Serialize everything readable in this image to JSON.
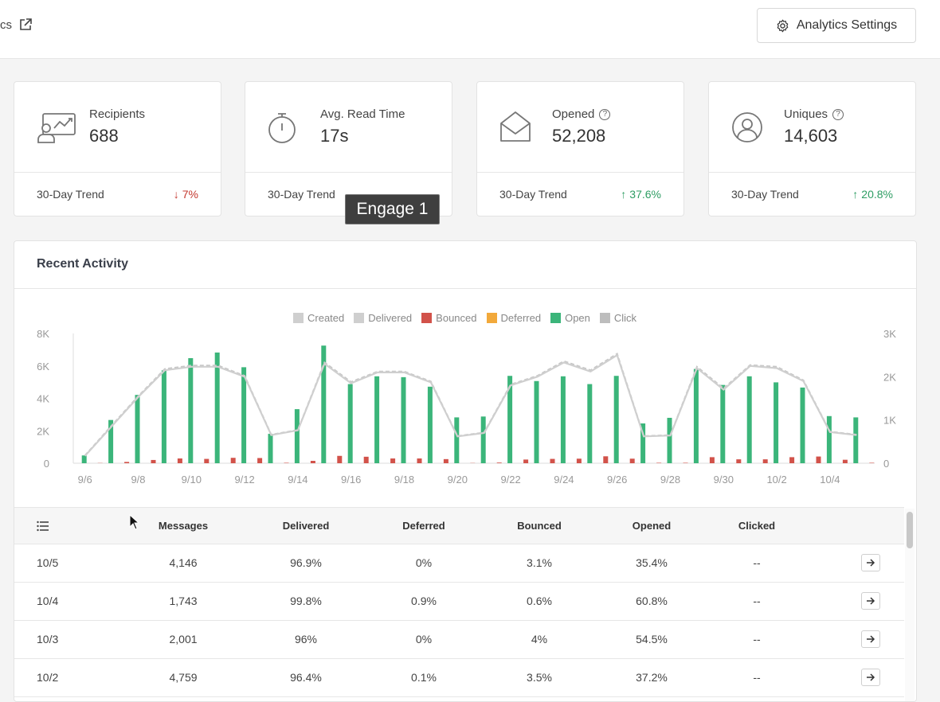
{
  "header": {
    "breadcrumb": "cs",
    "settings_label": "Analytics Settings"
  },
  "cards": [
    {
      "label": "Recipients",
      "value": "688",
      "trend_label": "30-Day Trend",
      "trend": "7%",
      "direction": "down",
      "icon": "chart-screen-icon"
    },
    {
      "label": "Avg. Read Time",
      "value": "17s",
      "trend_label": "30-Day Trend",
      "trend": "",
      "direction": "none",
      "icon": "stopwatch-icon"
    },
    {
      "label": "Opened",
      "value": "52,208",
      "trend_label": "30-Day Trend",
      "trend": "37.6%",
      "direction": "up",
      "icon": "open-envelope-icon"
    },
    {
      "label": "Uniques",
      "value": "14,603",
      "trend_label": "30-Day Trend",
      "trend": "20.8%",
      "direction": "up",
      "icon": "user-circle-icon"
    }
  ],
  "tooltip": "Engage 1",
  "activity": {
    "title": "Recent Activity"
  },
  "chart_data": {
    "type": "bar",
    "legend": [
      {
        "name": "Created",
        "color": "#cfcfcf"
      },
      {
        "name": "Delivered",
        "color": "#cfcfcf"
      },
      {
        "name": "Bounced",
        "color": "#d2524a"
      },
      {
        "name": "Deferred",
        "color": "#f2a93b"
      },
      {
        "name": "Open",
        "color": "#3bb57a"
      },
      {
        "name": "Click",
        "color": "#bdbdbd"
      }
    ],
    "x_tick_labels": [
      "9/6",
      "9/8",
      "9/10",
      "9/12",
      "9/14",
      "9/16",
      "9/18",
      "9/20",
      "9/22",
      "9/24",
      "9/26",
      "9/28",
      "9/30",
      "10/2",
      "10/4"
    ],
    "left_axis": {
      "ticks": [
        "0",
        "2K",
        "4K",
        "6K",
        "8K"
      ],
      "range": [
        0,
        8000
      ]
    },
    "right_axis": {
      "ticks": [
        "0",
        "1K",
        "2K",
        "3K"
      ],
      "range": [
        0,
        3000
      ]
    },
    "categories": [
      "9/6",
      "9/7",
      "9/8",
      "9/9",
      "9/10",
      "9/11",
      "9/12",
      "9/13",
      "9/14",
      "9/15",
      "9/16",
      "9/17",
      "9/18",
      "9/19",
      "9/20",
      "9/21",
      "9/22",
      "9/23",
      "9/24",
      "9/25",
      "9/26",
      "9/27",
      "9/28",
      "9/29",
      "9/30",
      "10/1",
      "10/2",
      "10/3",
      "10/4",
      "10/5"
    ],
    "series": [
      {
        "name": "Open",
        "axis": "right",
        "values": [
          180,
          1000,
          1580,
          2150,
          2430,
          2560,
          2220,
          680,
          1250,
          2720,
          1830,
          2010,
          1990,
          1770,
          1060,
          1080,
          2020,
          1900,
          2010,
          1830,
          2020,
          920,
          1050,
          2180,
          1810,
          2010,
          1870,
          1750,
          1090,
          1060
        ]
      },
      {
        "name": "Bounced",
        "axis": "right",
        "values": [
          5,
          30,
          75,
          110,
          100,
          125,
          120,
          10,
          55,
          170,
          150,
          110,
          110,
          95,
          5,
          15,
          85,
          100,
          105,
          160,
          105,
          10,
          10,
          140,
          90,
          90,
          140,
          155,
          80,
          10
        ]
      },
      {
        "name": "Delivered",
        "axis": "right",
        "values": [
          170,
          850,
          1530,
          2150,
          2230,
          2230,
          2000,
          650,
          760,
          2300,
          1850,
          2100,
          2100,
          1870,
          620,
          700,
          1800,
          2000,
          2330,
          2120,
          2500,
          620,
          640,
          2200,
          1700,
          2250,
          2200,
          1900,
          720,
          650
        ]
      },
      {
        "name": "Created",
        "axis": "right",
        "values": [
          180,
          870,
          1550,
          2180,
          2260,
          2260,
          2020,
          660,
          770,
          2330,
          1880,
          2120,
          2120,
          1890,
          630,
          710,
          1820,
          2020,
          2360,
          2150,
          2530,
          630,
          650,
          2230,
          1730,
          2270,
          2230,
          1920,
          730,
          660
        ]
      }
    ]
  },
  "table": {
    "columns": [
      "Messages",
      "Delivered",
      "Deferred",
      "Bounced",
      "Opened",
      "Clicked"
    ],
    "rows": [
      {
        "date": "10/5",
        "messages": "4,146",
        "delivered": "96.9%",
        "deferred": "0%",
        "bounced": "3.1%",
        "opened": "35.4%",
        "clicked": "--"
      },
      {
        "date": "10/4",
        "messages": "1,743",
        "delivered": "99.8%",
        "deferred": "0.9%",
        "bounced": "0.6%",
        "opened": "60.8%",
        "clicked": "--"
      },
      {
        "date": "10/3",
        "messages": "2,001",
        "delivered": "96%",
        "deferred": "0%",
        "bounced": "4%",
        "opened": "54.5%",
        "clicked": "--"
      },
      {
        "date": "10/2",
        "messages": "4,759",
        "delivered": "96.4%",
        "deferred": "0.1%",
        "bounced": "3.5%",
        "opened": "37.2%",
        "clicked": "--"
      }
    ]
  }
}
